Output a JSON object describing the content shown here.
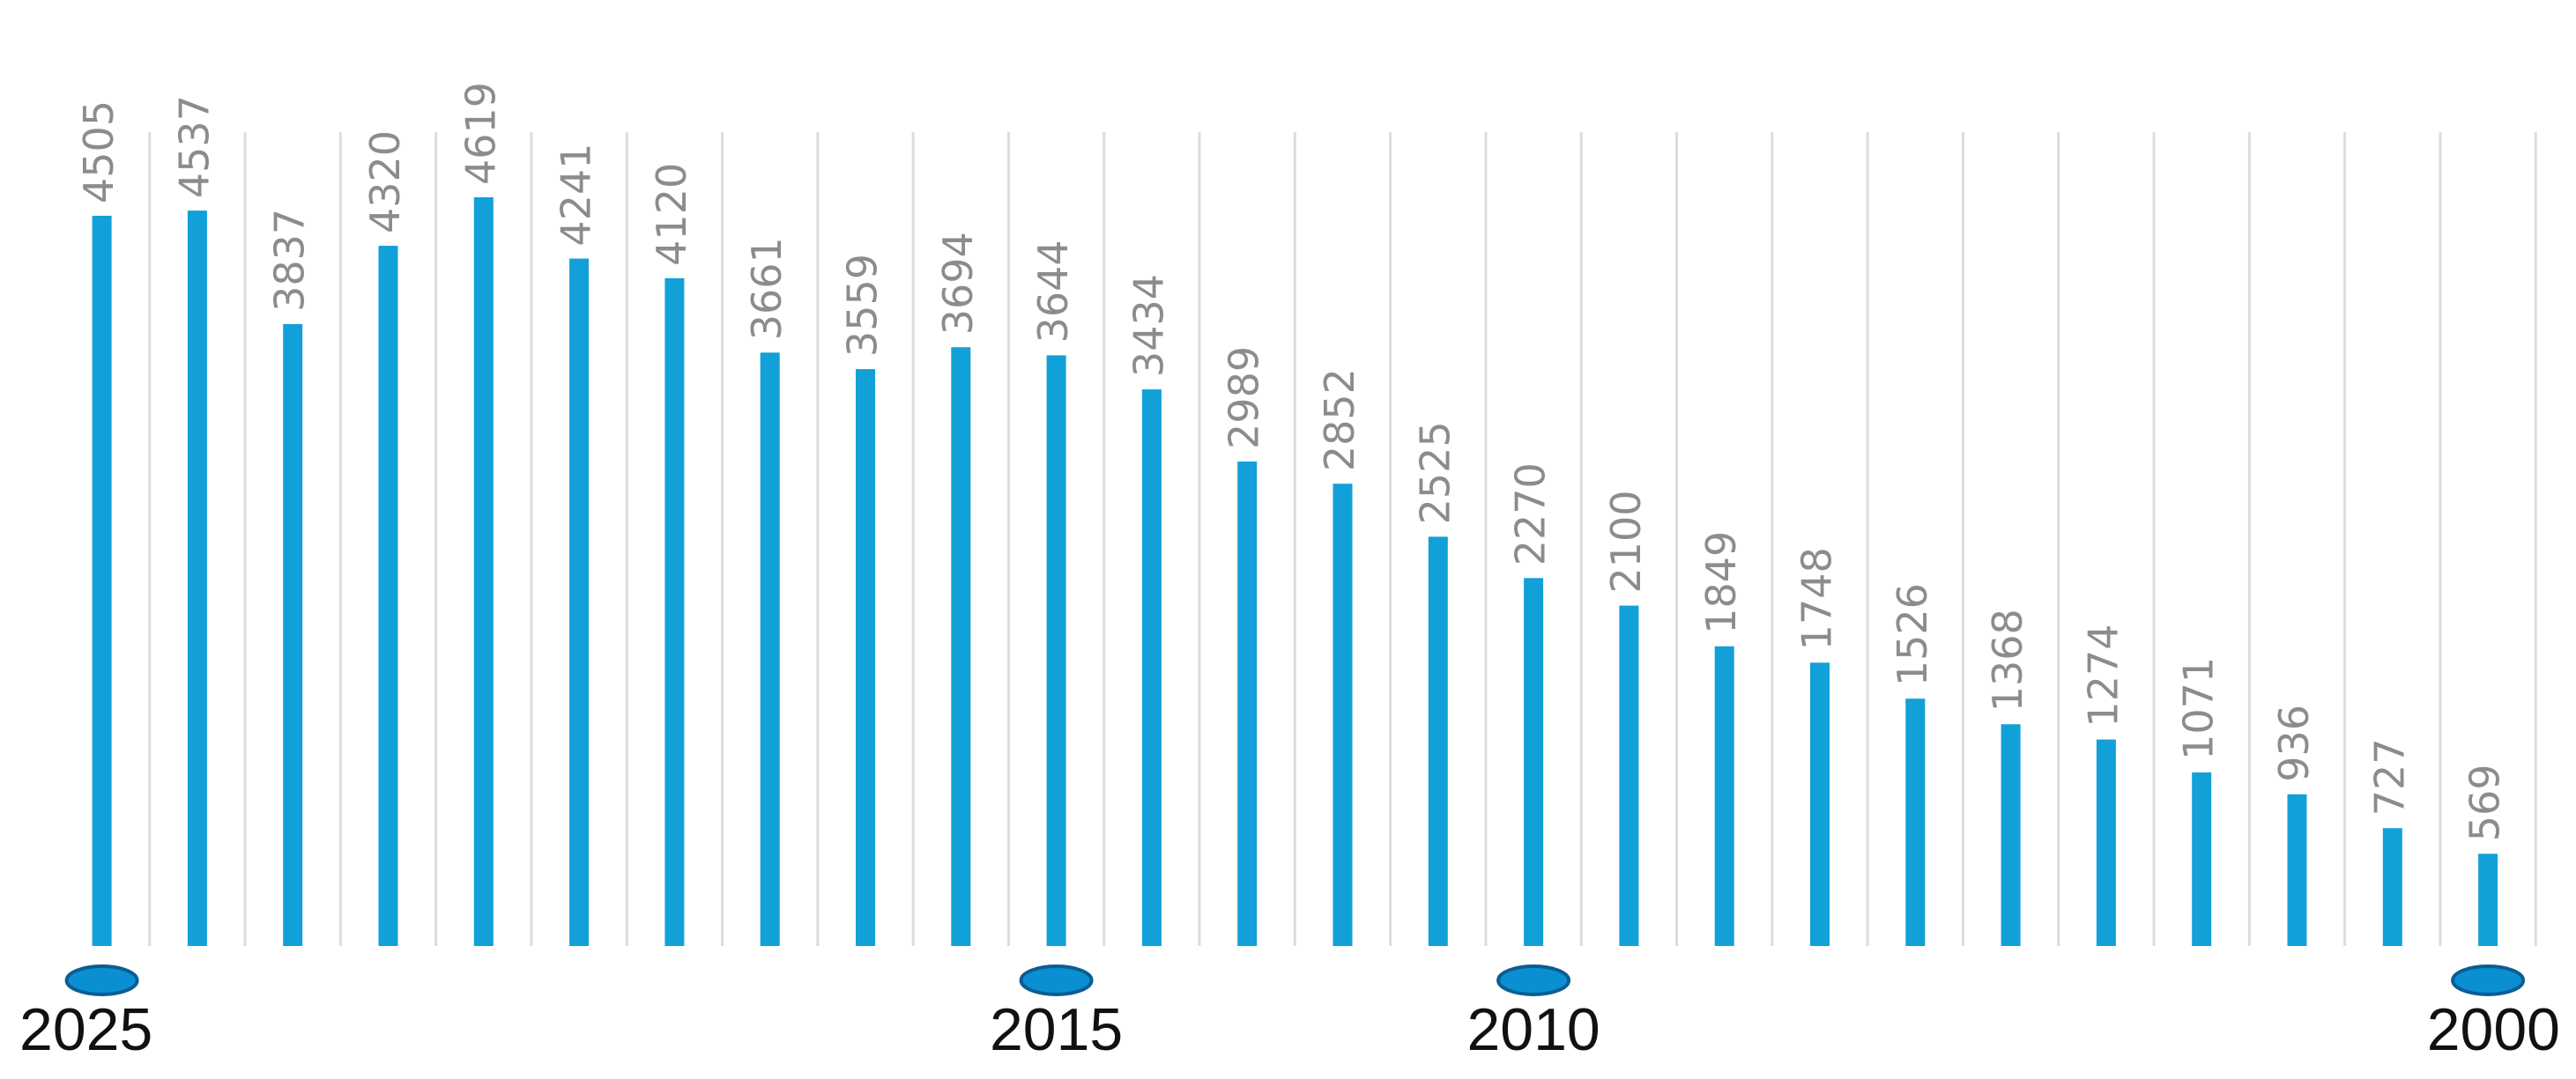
{
  "chart_data": {
    "type": "bar",
    "categories": [
      "2025",
      null,
      null,
      null,
      null,
      null,
      null,
      null,
      null,
      null,
      "2015",
      null,
      null,
      null,
      null,
      "2010",
      null,
      null,
      null,
      null,
      null,
      null,
      null,
      null,
      null,
      "2000"
    ],
    "values": [
      4505,
      4537,
      3837,
      4320,
      4619,
      4241,
      4120,
      3661,
      3559,
      3694,
      3644,
      3434,
      2989,
      2852,
      2525,
      2270,
      2100,
      1849,
      1748,
      1526,
      1368,
      1274,
      1071,
      936,
      727,
      569
    ],
    "color": "#12a0d9",
    "marker_color": "#0a8fd2",
    "grid": true
  }
}
